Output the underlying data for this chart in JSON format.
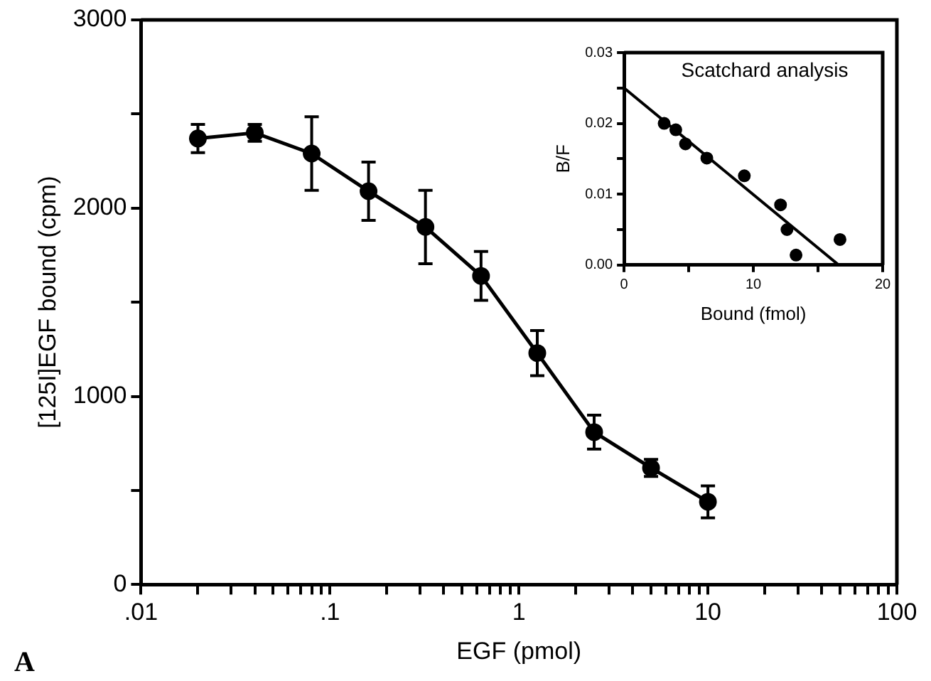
{
  "chart_data": [
    {
      "type": "line",
      "xlabel": "EGF (pmol)",
      "ylabel": "[125I]EGF bound (cpm)",
      "annotations": [
        "A"
      ],
      "log": "x",
      "marker": "circle",
      "line_style": "solid",
      "x": [
        0.02,
        0.04,
        0.08,
        0.16,
        0.32,
        0.63,
        1.25,
        2.5,
        5,
        10
      ],
      "xlim": [
        0.01,
        100
      ],
      "xticks": [
        {
          "value": 0.01,
          "label": ".01"
        },
        {
          "value": 0.02,
          "label": null
        },
        {
          "value": 0.03,
          "label": null
        },
        {
          "value": 0.04,
          "label": null
        },
        {
          "value": 0.05,
          "label": null
        },
        {
          "value": 0.06,
          "label": null
        },
        {
          "value": 0.07,
          "label": null
        },
        {
          "value": 0.08,
          "label": null
        },
        {
          "value": 0.09,
          "label": null
        },
        {
          "value": 0.1,
          "label": ".1"
        },
        {
          "value": 0.2,
          "label": null
        },
        {
          "value": 0.3,
          "label": null
        },
        {
          "value": 0.4,
          "label": null
        },
        {
          "value": 0.5,
          "label": null
        },
        {
          "value": 0.6,
          "label": null
        },
        {
          "value": 0.7,
          "label": null
        },
        {
          "value": 0.8,
          "label": null
        },
        {
          "value": 0.9,
          "label": null
        },
        1,
        {
          "value": 2,
          "label": null
        },
        {
          "value": 3,
          "label": null
        },
        {
          "value": 4,
          "label": null
        },
        {
          "value": 5,
          "label": null
        },
        {
          "value": 6,
          "label": null
        },
        {
          "value": 7,
          "label": null
        },
        {
          "value": 8,
          "label": null
        },
        {
          "value": 9,
          "label": null
        },
        10,
        {
          "value": 20,
          "label": null
        },
        {
          "value": 30,
          "label": null
        },
        {
          "value": 40,
          "label": null
        },
        {
          "value": 50,
          "label": null
        },
        {
          "value": 60,
          "label": null
        },
        {
          "value": 70,
          "label": null
        },
        {
          "value": 80,
          "label": null
        },
        {
          "value": 90,
          "label": null
        },
        100
      ],
      "ylim": [
        0,
        3000
      ],
      "yticks": [
        0,
        {
          "value": 500,
          "label": null
        },
        1000,
        {
          "value": 1500,
          "label": null
        },
        2000,
        {
          "value": 2500,
          "label": null
        },
        3000
      ],
      "series": [
        {
          "color": "#000000",
          "values": [
            2370,
            2400,
            2290,
            2090,
            1900,
            1640,
            1230,
            810,
            620,
            440
          ],
          "errors": [
            75,
            45,
            195,
            155,
            195,
            130,
            120,
            90,
            45,
            85
          ]
        }
      ]
    },
    {
      "type": "scatter",
      "title": "Scatchard analysis",
      "xlabel": "Bound (fmol)",
      "ylabel": "B/F",
      "marker": "circle",
      "xlim": [
        0,
        20
      ],
      "xticks": [
        0,
        {
          "value": 5,
          "label": null
        },
        10,
        {
          "value": 15,
          "label": null
        },
        20
      ],
      "ylim": [
        0,
        0.03
      ],
      "yticks": [
        {
          "value": 0,
          "label": "0.00"
        },
        {
          "value": 0.005,
          "label": null
        },
        {
          "value": 0.01,
          "label": "0.01"
        },
        {
          "value": 0.015,
          "label": null
        },
        {
          "value": 0.02,
          "label": "0.02"
        },
        {
          "value": 0.025,
          "label": null
        },
        {
          "value": 0.03,
          "label": "0.03"
        }
      ],
      "series": [
        {
          "color": "#000000",
          "x": [
            3.1,
            4.0,
            4.75,
            6.4,
            9.3,
            12.1,
            12.6,
            13.3,
            16.7
          ],
          "values": [
            0.02,
            0.0191,
            0.0171,
            0.0151,
            0.0126,
            0.0085,
            0.005,
            0.0014,
            0.0036
          ]
        },
        {
          "type": "line",
          "marker": "none",
          "color": "#000000",
          "x": [
            0,
            16.6
          ],
          "values": [
            0.025,
            0
          ]
        }
      ]
    }
  ]
}
